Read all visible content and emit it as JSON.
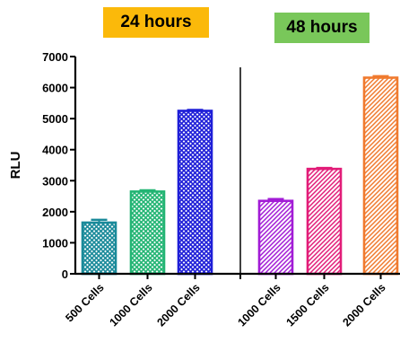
{
  "chart_data": {
    "type": "bar",
    "ylabel": "RLU",
    "ylim": [
      0,
      7000
    ],
    "yticks": [
      0,
      1000,
      2000,
      3000,
      4000,
      5000,
      6000,
      7000
    ],
    "grid": false,
    "groups": [
      {
        "label": "24 hours",
        "label_color": "#FBB90A",
        "categories": [
          "500 Cells",
          "1000 Cells",
          "2000 Cells"
        ],
        "values": [
          1650,
          2650,
          5250
        ],
        "errors": [
          90,
          40,
          30
        ],
        "colors": [
          "#1A8A9A",
          "#23B574",
          "#1E1ED8"
        ],
        "pattern": "crosshatch"
      },
      {
        "label": "48 hours",
        "label_color": "#79C75A",
        "categories": [
          "1000 Cells",
          "1500 Cells",
          "2000 Cells"
        ],
        "values": [
          2350,
          3380,
          6320
        ],
        "errors": [
          60,
          30,
          50
        ],
        "colors": [
          "#A21BD6",
          "#E21C78",
          "#F07A2E"
        ],
        "pattern": "diagonal"
      }
    ]
  }
}
